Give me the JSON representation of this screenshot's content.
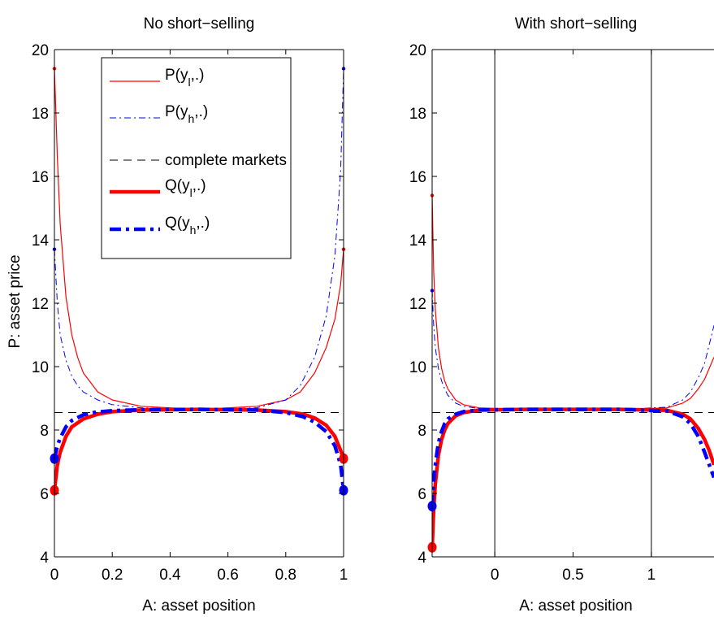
{
  "chart_data": [
    {
      "type": "line",
      "title": "No short−selling",
      "xlabel": "A: asset position",
      "ylabel": "P: asset price",
      "xlim": [
        0,
        1
      ],
      "ylim": [
        4,
        20
      ],
      "xticks": [
        "0",
        "0.2",
        "0.4",
        "0.6",
        "0.8",
        "1"
      ],
      "yticks": [
        "4",
        "6",
        "8",
        "10",
        "12",
        "14",
        "16",
        "18",
        "20"
      ],
      "legend": {
        "placement": "upper-left",
        "entries": [
          {
            "label_main": "P(y",
            "label_sub": "l",
            "label_end": ",.)"
          },
          {
            "label_main": "P(y",
            "label_sub": "h",
            "label_end": ",.)"
          },
          {
            "label_main": "complete markets",
            "label_sub": "",
            "label_end": ""
          },
          {
            "label_main": "Q(y",
            "label_sub": "l",
            "label_end": ",.)"
          },
          {
            "label_main": "Q(y",
            "label_sub": "h",
            "label_end": ",.)"
          }
        ]
      },
      "series": [
        {
          "color": "#ff0000",
          "style": "solid-thin",
          "x": [
            0,
            0.01,
            0.02,
            0.04,
            0.06,
            0.08,
            0.1,
            0.15,
            0.2,
            0.3,
            0.5,
            0.7,
            0.8,
            0.85,
            0.9,
            0.94,
            0.97,
            0.99,
            1
          ],
          "y": [
            19.4,
            16.6,
            14.5,
            12.2,
            11.0,
            10.3,
            9.8,
            9.2,
            8.95,
            8.75,
            8.65,
            8.75,
            8.95,
            9.2,
            9.8,
            10.6,
            11.5,
            12.6,
            13.7
          ]
        },
        {
          "color": "#0000ff",
          "style": "dashdot-thin",
          "x": [
            0,
            0.01,
            0.02,
            0.04,
            0.06,
            0.08,
            0.1,
            0.15,
            0.2,
            0.3,
            0.5,
            0.7,
            0.8,
            0.85,
            0.9,
            0.94,
            0.97,
            0.99,
            1
          ],
          "y": [
            13.7,
            12.0,
            11.0,
            10.2,
            9.7,
            9.4,
            9.2,
            8.95,
            8.8,
            8.7,
            8.65,
            8.7,
            8.95,
            9.4,
            10.3,
            11.6,
            13.5,
            16.2,
            19.4
          ]
        },
        {
          "color": "#000000",
          "style": "dashed",
          "x": [
            0,
            1
          ],
          "y": [
            8.55,
            8.55
          ]
        },
        {
          "color": "#ff0000",
          "style": "solid-thick",
          "x": [
            0,
            0.01,
            0.02,
            0.04,
            0.06,
            0.1,
            0.15,
            0.2,
            0.3,
            0.5,
            0.7,
            0.8,
            0.86,
            0.9,
            0.94,
            0.97,
            0.99,
            1
          ],
          "y": [
            6.1,
            6.9,
            7.3,
            7.8,
            8.1,
            8.35,
            8.5,
            8.58,
            8.63,
            8.65,
            8.63,
            8.58,
            8.5,
            8.38,
            8.15,
            7.8,
            7.35,
            7.1
          ]
        },
        {
          "color": "#0000ff",
          "style": "dashdot-thick",
          "x": [
            0,
            0.01,
            0.02,
            0.04,
            0.06,
            0.1,
            0.14,
            0.2,
            0.3,
            0.5,
            0.7,
            0.8,
            0.86,
            0.9,
            0.94,
            0.97,
            0.99,
            1
          ],
          "y": [
            7.1,
            7.5,
            7.75,
            8.1,
            8.3,
            8.48,
            8.56,
            8.61,
            8.64,
            8.65,
            8.63,
            8.55,
            8.42,
            8.25,
            7.95,
            7.5,
            6.9,
            6.1
          ]
        }
      ],
      "endpoints": [
        {
          "x": 0,
          "y": 6.1,
          "color": "#ff0000",
          "size": "large"
        },
        {
          "x": 0,
          "y": 7.1,
          "color": "#0000ff",
          "size": "large"
        },
        {
          "x": 1,
          "y": 7.1,
          "color": "#ff0000",
          "size": "large"
        },
        {
          "x": 1,
          "y": 6.1,
          "color": "#0000ff",
          "size": "large"
        },
        {
          "x": 0,
          "y": 19.4,
          "color": "#ff0000",
          "size": "small"
        },
        {
          "x": 0,
          "y": 13.7,
          "color": "#0000ff",
          "size": "small"
        },
        {
          "x": 1,
          "y": 13.7,
          "color": "#ff0000",
          "size": "small"
        },
        {
          "x": 1,
          "y": 19.4,
          "color": "#0000ff",
          "size": "small"
        }
      ],
      "vlines": []
    },
    {
      "type": "line",
      "title": "With short−selling",
      "xlabel": "A: asset position",
      "ylabel": "",
      "xlim": [
        -0.4,
        1.4
      ],
      "ylim": [
        4,
        20
      ],
      "xticks": [
        "0",
        "0.5",
        "1"
      ],
      "xtick_values": [
        0,
        0.5,
        1
      ],
      "yticks": [
        "4",
        "6",
        "8",
        "10",
        "12",
        "14",
        "16",
        "18",
        "20"
      ],
      "series": [
        {
          "color": "#ff0000",
          "style": "solid-thin",
          "x": [
            -0.4,
            -0.39,
            -0.38,
            -0.36,
            -0.34,
            -0.32,
            -0.3,
            -0.25,
            -0.2,
            -0.1,
            0.2,
            0.5,
            0.8,
            1.1,
            1.2,
            1.25,
            1.3,
            1.34,
            1.37,
            1.4
          ],
          "y": [
            15.4,
            13.0,
            11.8,
            10.6,
            9.95,
            9.55,
            9.3,
            8.95,
            8.8,
            8.7,
            8.65,
            8.65,
            8.65,
            8.7,
            8.85,
            9.0,
            9.3,
            9.6,
            9.95,
            10.3
          ]
        },
        {
          "color": "#0000ff",
          "style": "dashdot-thin",
          "x": [
            -0.4,
            -0.39,
            -0.38,
            -0.36,
            -0.34,
            -0.32,
            -0.3,
            -0.25,
            -0.2,
            -0.1,
            0.2,
            0.5,
            0.8,
            1.1,
            1.2,
            1.25,
            1.3,
            1.34,
            1.37,
            1.4
          ],
          "y": [
            12.4,
            11.3,
            10.6,
            9.95,
            9.55,
            9.3,
            9.1,
            8.85,
            8.75,
            8.68,
            8.65,
            8.65,
            8.65,
            8.72,
            8.95,
            9.2,
            9.65,
            10.1,
            10.7,
            11.3
          ]
        },
        {
          "color": "#000000",
          "style": "dashed",
          "x": [
            -0.4,
            1.4
          ],
          "y": [
            8.55,
            8.55
          ]
        },
        {
          "color": "#ff0000",
          "style": "solid-thick",
          "x": [
            -0.4,
            -0.39,
            -0.38,
            -0.36,
            -0.34,
            -0.32,
            -0.3,
            -0.25,
            -0.2,
            -0.1,
            0.2,
            0.5,
            0.8,
            1.1,
            1.2,
            1.25,
            1.3,
            1.34,
            1.37,
            1.4
          ],
          "y": [
            4.3,
            5.5,
            6.3,
            7.2,
            7.7,
            8.0,
            8.2,
            8.45,
            8.55,
            8.63,
            8.65,
            8.65,
            8.65,
            8.62,
            8.5,
            8.35,
            8.05,
            7.7,
            7.35,
            6.9
          ]
        },
        {
          "color": "#0000ff",
          "style": "dashdot-thick",
          "x": [
            -0.4,
            -0.39,
            -0.38,
            -0.36,
            -0.34,
            -0.32,
            -0.3,
            -0.25,
            -0.2,
            -0.1,
            0.2,
            0.5,
            0.8,
            1.1,
            1.2,
            1.25,
            1.3,
            1.34,
            1.37,
            1.4
          ],
          "y": [
            5.6,
            6.4,
            6.9,
            7.6,
            7.95,
            8.2,
            8.35,
            8.5,
            8.58,
            8.63,
            8.65,
            8.65,
            8.65,
            8.6,
            8.42,
            8.2,
            7.8,
            7.3,
            6.9,
            6.5
          ]
        }
      ],
      "endpoints": [
        {
          "x": -0.4,
          "y": 4.3,
          "color": "#ff0000",
          "size": "large"
        },
        {
          "x": -0.4,
          "y": 5.6,
          "color": "#0000ff",
          "size": "large"
        },
        {
          "x": -0.4,
          "y": 15.4,
          "color": "#ff0000",
          "size": "small"
        },
        {
          "x": -0.4,
          "y": 12.4,
          "color": "#0000ff",
          "size": "small"
        }
      ],
      "vlines": [
        0,
        1
      ]
    }
  ]
}
